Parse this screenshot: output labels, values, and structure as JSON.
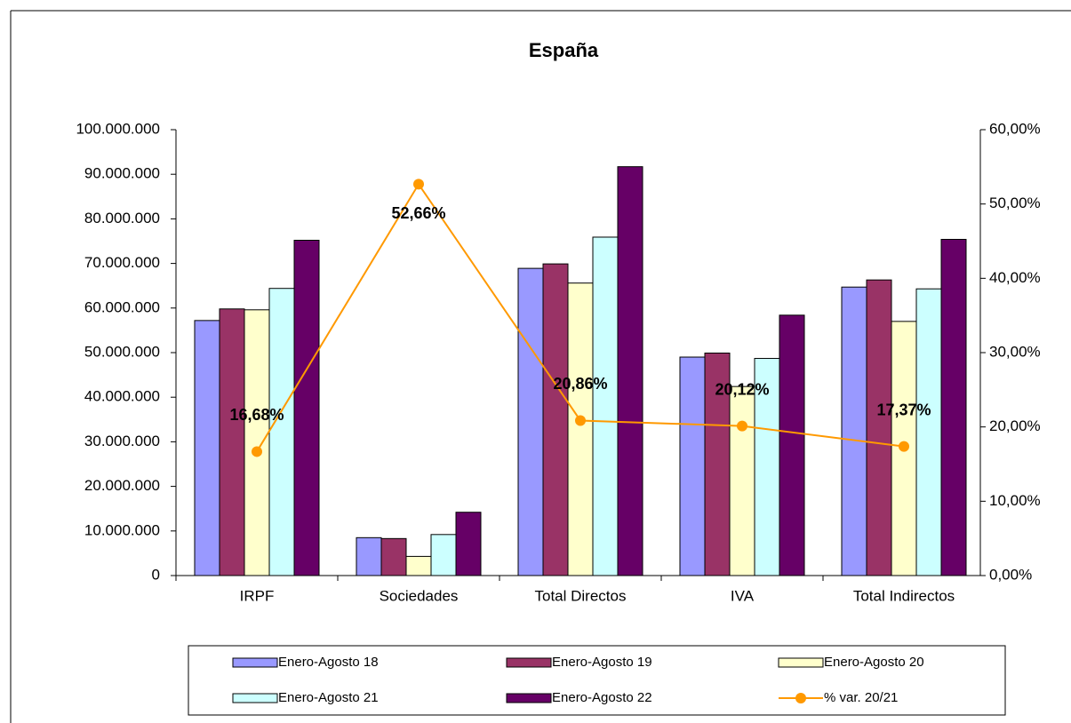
{
  "chart_data": {
    "type": "bar",
    "title": "España",
    "categories": [
      "IRPF",
      "Sociedades",
      "Total Directos",
      "IVA",
      "Total Indirectos"
    ],
    "series": [
      {
        "name": "Enero-Agosto 18",
        "color": "#9999ff",
        "values": [
          57200000,
          8500000,
          68900000,
          49000000,
          64700000
        ]
      },
      {
        "name": "Enero-Agosto 19",
        "color": "#993366",
        "values": [
          59800000,
          8300000,
          69900000,
          49900000,
          66300000
        ]
      },
      {
        "name": "Enero-Agosto 20",
        "color": "#ffffcc",
        "values": [
          59600000,
          4300000,
          65600000,
          42400000,
          57000000
        ]
      },
      {
        "name": "Enero-Agosto 21",
        "color": "#ccffff",
        "values": [
          64400000,
          9200000,
          75900000,
          48700000,
          64300000
        ]
      },
      {
        "name": "Enero-Agosto 22",
        "color": "#660066",
        "values": [
          75200000,
          14200000,
          91700000,
          58400000,
          75400000
        ]
      },
      {
        "name": "% var. 20/21",
        "color": "#ff9900",
        "type": "line",
        "axis": "y2",
        "values": [
          16.68,
          52.66,
          20.86,
          20.12,
          17.37
        ],
        "value_labels": [
          "16,68%",
          "52,66%",
          "20,86%",
          "20,12%",
          "17,37%"
        ]
      }
    ],
    "ylim": [
      0,
      100000000
    ],
    "yticks": [
      {
        "value": 0,
        "label": "0"
      },
      {
        "value": 10000000,
        "label": "10.000.000"
      },
      {
        "value": 20000000,
        "label": "20.000.000"
      },
      {
        "value": 30000000,
        "label": "30.000.000"
      },
      {
        "value": 40000000,
        "label": "40.000.000"
      },
      {
        "value": 50000000,
        "label": "50.000.000"
      },
      {
        "value": 60000000,
        "label": "60.000.000"
      },
      {
        "value": 70000000,
        "label": "70.000.000"
      },
      {
        "value": 80000000,
        "label": "80.000.000"
      },
      {
        "value": 90000000,
        "label": "90.000.000"
      },
      {
        "value": 100000000,
        "label": "100.000.000"
      }
    ],
    "y2lim": [
      0,
      60
    ],
    "y2ticks": [
      {
        "value": 0,
        "label": "0,00%"
      },
      {
        "value": 10,
        "label": "10,00%"
      },
      {
        "value": 20,
        "label": "20,00%"
      },
      {
        "value": 30,
        "label": "30,00%"
      },
      {
        "value": 40,
        "label": "40,00%"
      },
      {
        "value": 50,
        "label": "50,00%"
      },
      {
        "value": 60,
        "label": "60,00%"
      }
    ],
    "grid": false
  }
}
